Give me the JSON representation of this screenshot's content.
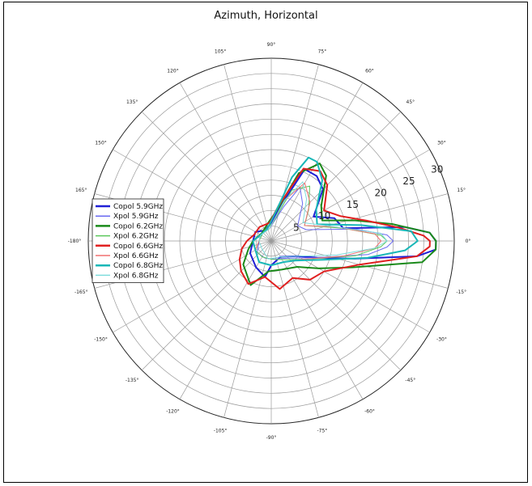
{
  "chart_data": {
    "type": "line",
    "projection": "polar",
    "title": "Azimuth, Horizontal",
    "radial_ticks": [
      "5",
      "10",
      "15",
      "20",
      "25",
      "30"
    ],
    "radial_range": [
      0,
      30
    ],
    "angle_ticks": [
      {
        "deg": 0,
        "label": "0°"
      },
      {
        "deg": 15,
        "label": "15°"
      },
      {
        "deg": 30,
        "label": "30°"
      },
      {
        "deg": 45,
        "label": "45°"
      },
      {
        "deg": 60,
        "label": "60°"
      },
      {
        "deg": 75,
        "label": "75°"
      },
      {
        "deg": 90,
        "label": "90°"
      },
      {
        "deg": 105,
        "label": "105°"
      },
      {
        "deg": 120,
        "label": "120°"
      },
      {
        "deg": 135,
        "label": "135°"
      },
      {
        "deg": 150,
        "label": "150°"
      },
      {
        "deg": 165,
        "label": "165°"
      },
      {
        "deg": 180,
        "label": "-180°"
      },
      {
        "deg": 195,
        "label": "-165°"
      },
      {
        "deg": 210,
        "label": "-150°"
      },
      {
        "deg": 225,
        "label": "-135°"
      },
      {
        "deg": 240,
        "label": "-120°"
      },
      {
        "deg": 255,
        "label": "-105°"
      },
      {
        "deg": 270,
        "label": "-90°"
      },
      {
        "deg": 285,
        "label": "-75°"
      },
      {
        "deg": 300,
        "label": "-60°"
      },
      {
        "deg": 315,
        "label": "-45°"
      },
      {
        "deg": 330,
        "label": "-30°"
      },
      {
        "deg": 345,
        "label": "-15°"
      }
    ],
    "grid": true,
    "legend_position": "left",
    "series": [
      {
        "name": "Copol 5.9GHz",
        "color": "#1f1fd6",
        "width": 2,
        "points": [
          [
            -180,
            3
          ],
          [
            -150,
            4
          ],
          [
            -120,
            5
          ],
          [
            -100,
            6
          ],
          [
            -90,
            4
          ],
          [
            -60,
            3
          ],
          [
            -30,
            5
          ],
          [
            -20,
            8
          ],
          [
            -12,
            14
          ],
          [
            -6,
            24
          ],
          [
            -3,
            27
          ],
          [
            0,
            27
          ],
          [
            3,
            26
          ],
          [
            6,
            22
          ],
          [
            10,
            12
          ],
          [
            20,
            11
          ],
          [
            30,
            8
          ],
          [
            45,
            12
          ],
          [
            55,
            13
          ],
          [
            65,
            13
          ],
          [
            75,
            6
          ],
          [
            90,
            3
          ],
          [
            120,
            2
          ],
          [
            150,
            3
          ],
          [
            180,
            3
          ]
        ]
      },
      {
        "name": "Xpol 5.9GHz",
        "color": "#6a6af0",
        "width": 1,
        "points": [
          [
            -180,
            2
          ],
          [
            -140,
            3
          ],
          [
            -110,
            3
          ],
          [
            -80,
            3
          ],
          [
            -45,
            4
          ],
          [
            -20,
            8
          ],
          [
            -8,
            16
          ],
          [
            -3,
            19
          ],
          [
            0,
            20
          ],
          [
            3,
            19
          ],
          [
            8,
            14
          ],
          [
            18,
            6
          ],
          [
            30,
            5
          ],
          [
            50,
            8
          ],
          [
            62,
            10
          ],
          [
            70,
            6
          ],
          [
            100,
            2
          ],
          [
            140,
            2
          ],
          [
            180,
            2
          ]
        ]
      },
      {
        "name": "Copol 6.2GHz",
        "color": "#1a8a1a",
        "width": 2,
        "points": [
          [
            -180,
            3
          ],
          [
            -160,
            4
          ],
          [
            -140,
            6
          ],
          [
            -115,
            8
          ],
          [
            -95,
            5
          ],
          [
            -70,
            5
          ],
          [
            -45,
            6
          ],
          [
            -30,
            9
          ],
          [
            -18,
            14
          ],
          [
            -8,
            25
          ],
          [
            -3,
            27
          ],
          [
            0,
            27
          ],
          [
            3,
            26
          ],
          [
            8,
            20
          ],
          [
            14,
            14
          ],
          [
            22,
            9
          ],
          [
            35,
            10
          ],
          [
            50,
            14
          ],
          [
            58,
            15
          ],
          [
            68,
            12
          ],
          [
            80,
            5
          ],
          [
            100,
            3
          ],
          [
            140,
            2
          ],
          [
            180,
            3
          ]
        ]
      },
      {
        "name": "Xpol 6.2GHz",
        "color": "#5cc85c",
        "width": 1,
        "points": [
          [
            -180,
            2
          ],
          [
            -150,
            3
          ],
          [
            -120,
            3
          ],
          [
            -90,
            3
          ],
          [
            -50,
            4
          ],
          [
            -25,
            7
          ],
          [
            -10,
            14
          ],
          [
            -3,
            18
          ],
          [
            0,
            19
          ],
          [
            3,
            18
          ],
          [
            10,
            12
          ],
          [
            25,
            6
          ],
          [
            40,
            8
          ],
          [
            55,
            11
          ],
          [
            68,
            9
          ],
          [
            85,
            3
          ],
          [
            130,
            2
          ],
          [
            180,
            2
          ]
        ]
      },
      {
        "name": "Copol 6.6GHz",
        "color": "#e02020",
        "width": 2,
        "points": [
          [
            -180,
            4
          ],
          [
            -165,
            5
          ],
          [
            -150,
            6
          ],
          [
            -135,
            7
          ],
          [
            -118,
            8
          ],
          [
            -100,
            6
          ],
          [
            -80,
            8
          ],
          [
            -60,
            7
          ],
          [
            -45,
            9
          ],
          [
            -30,
            10
          ],
          [
            -15,
            15
          ],
          [
            -6,
            24
          ],
          [
            -2,
            26
          ],
          [
            0,
            26
          ],
          [
            2,
            25
          ],
          [
            6,
            21
          ],
          [
            12,
            16
          ],
          [
            20,
            12
          ],
          [
            30,
            10
          ],
          [
            45,
            13
          ],
          [
            55,
            14
          ],
          [
            66,
            13
          ],
          [
            78,
            6
          ],
          [
            95,
            3
          ],
          [
            130,
            3
          ],
          [
            160,
            3
          ],
          [
            180,
            4
          ]
        ]
      },
      {
        "name": "Xpol 6.6GHz",
        "color": "#f07070",
        "width": 1,
        "points": [
          [
            -180,
            2
          ],
          [
            -150,
            3
          ],
          [
            -120,
            4
          ],
          [
            -90,
            4
          ],
          [
            -60,
            4
          ],
          [
            -30,
            6
          ],
          [
            -12,
            12
          ],
          [
            -4,
            17
          ],
          [
            0,
            18
          ],
          [
            4,
            17
          ],
          [
            12,
            11
          ],
          [
            25,
            6
          ],
          [
            45,
            9
          ],
          [
            60,
            11
          ],
          [
            72,
            7
          ],
          [
            100,
            2
          ],
          [
            150,
            2
          ],
          [
            180,
            2
          ]
        ]
      },
      {
        "name": "Copol 6.8GHz",
        "color": "#19b7b7",
        "width": 2,
        "points": [
          [
            -180,
            3
          ],
          [
            -150,
            3
          ],
          [
            -120,
            4
          ],
          [
            -90,
            4
          ],
          [
            -60,
            4
          ],
          [
            -40,
            5
          ],
          [
            -20,
            9
          ],
          [
            -10,
            16
          ],
          [
            -4,
            22
          ],
          [
            0,
            24
          ],
          [
            4,
            23
          ],
          [
            10,
            15
          ],
          [
            20,
            8
          ],
          [
            35,
            9
          ],
          [
            50,
            13
          ],
          [
            60,
            15
          ],
          [
            66,
            15
          ],
          [
            72,
            11
          ],
          [
            85,
            4
          ],
          [
            110,
            2
          ],
          [
            150,
            2
          ],
          [
            180,
            3
          ]
        ]
      },
      {
        "name": "Xpol 6.8GHz",
        "color": "#7fdcdc",
        "width": 1,
        "points": [
          [
            -180,
            2
          ],
          [
            -140,
            2
          ],
          [
            -100,
            3
          ],
          [
            -60,
            3
          ],
          [
            -30,
            5
          ],
          [
            -12,
            11
          ],
          [
            -4,
            17
          ],
          [
            0,
            19
          ],
          [
            4,
            18
          ],
          [
            12,
            11
          ],
          [
            30,
            6
          ],
          [
            50,
            9
          ],
          [
            62,
            11
          ],
          [
            72,
            7
          ],
          [
            100,
            2
          ],
          [
            150,
            2
          ],
          [
            180,
            2
          ]
        ]
      }
    ]
  }
}
